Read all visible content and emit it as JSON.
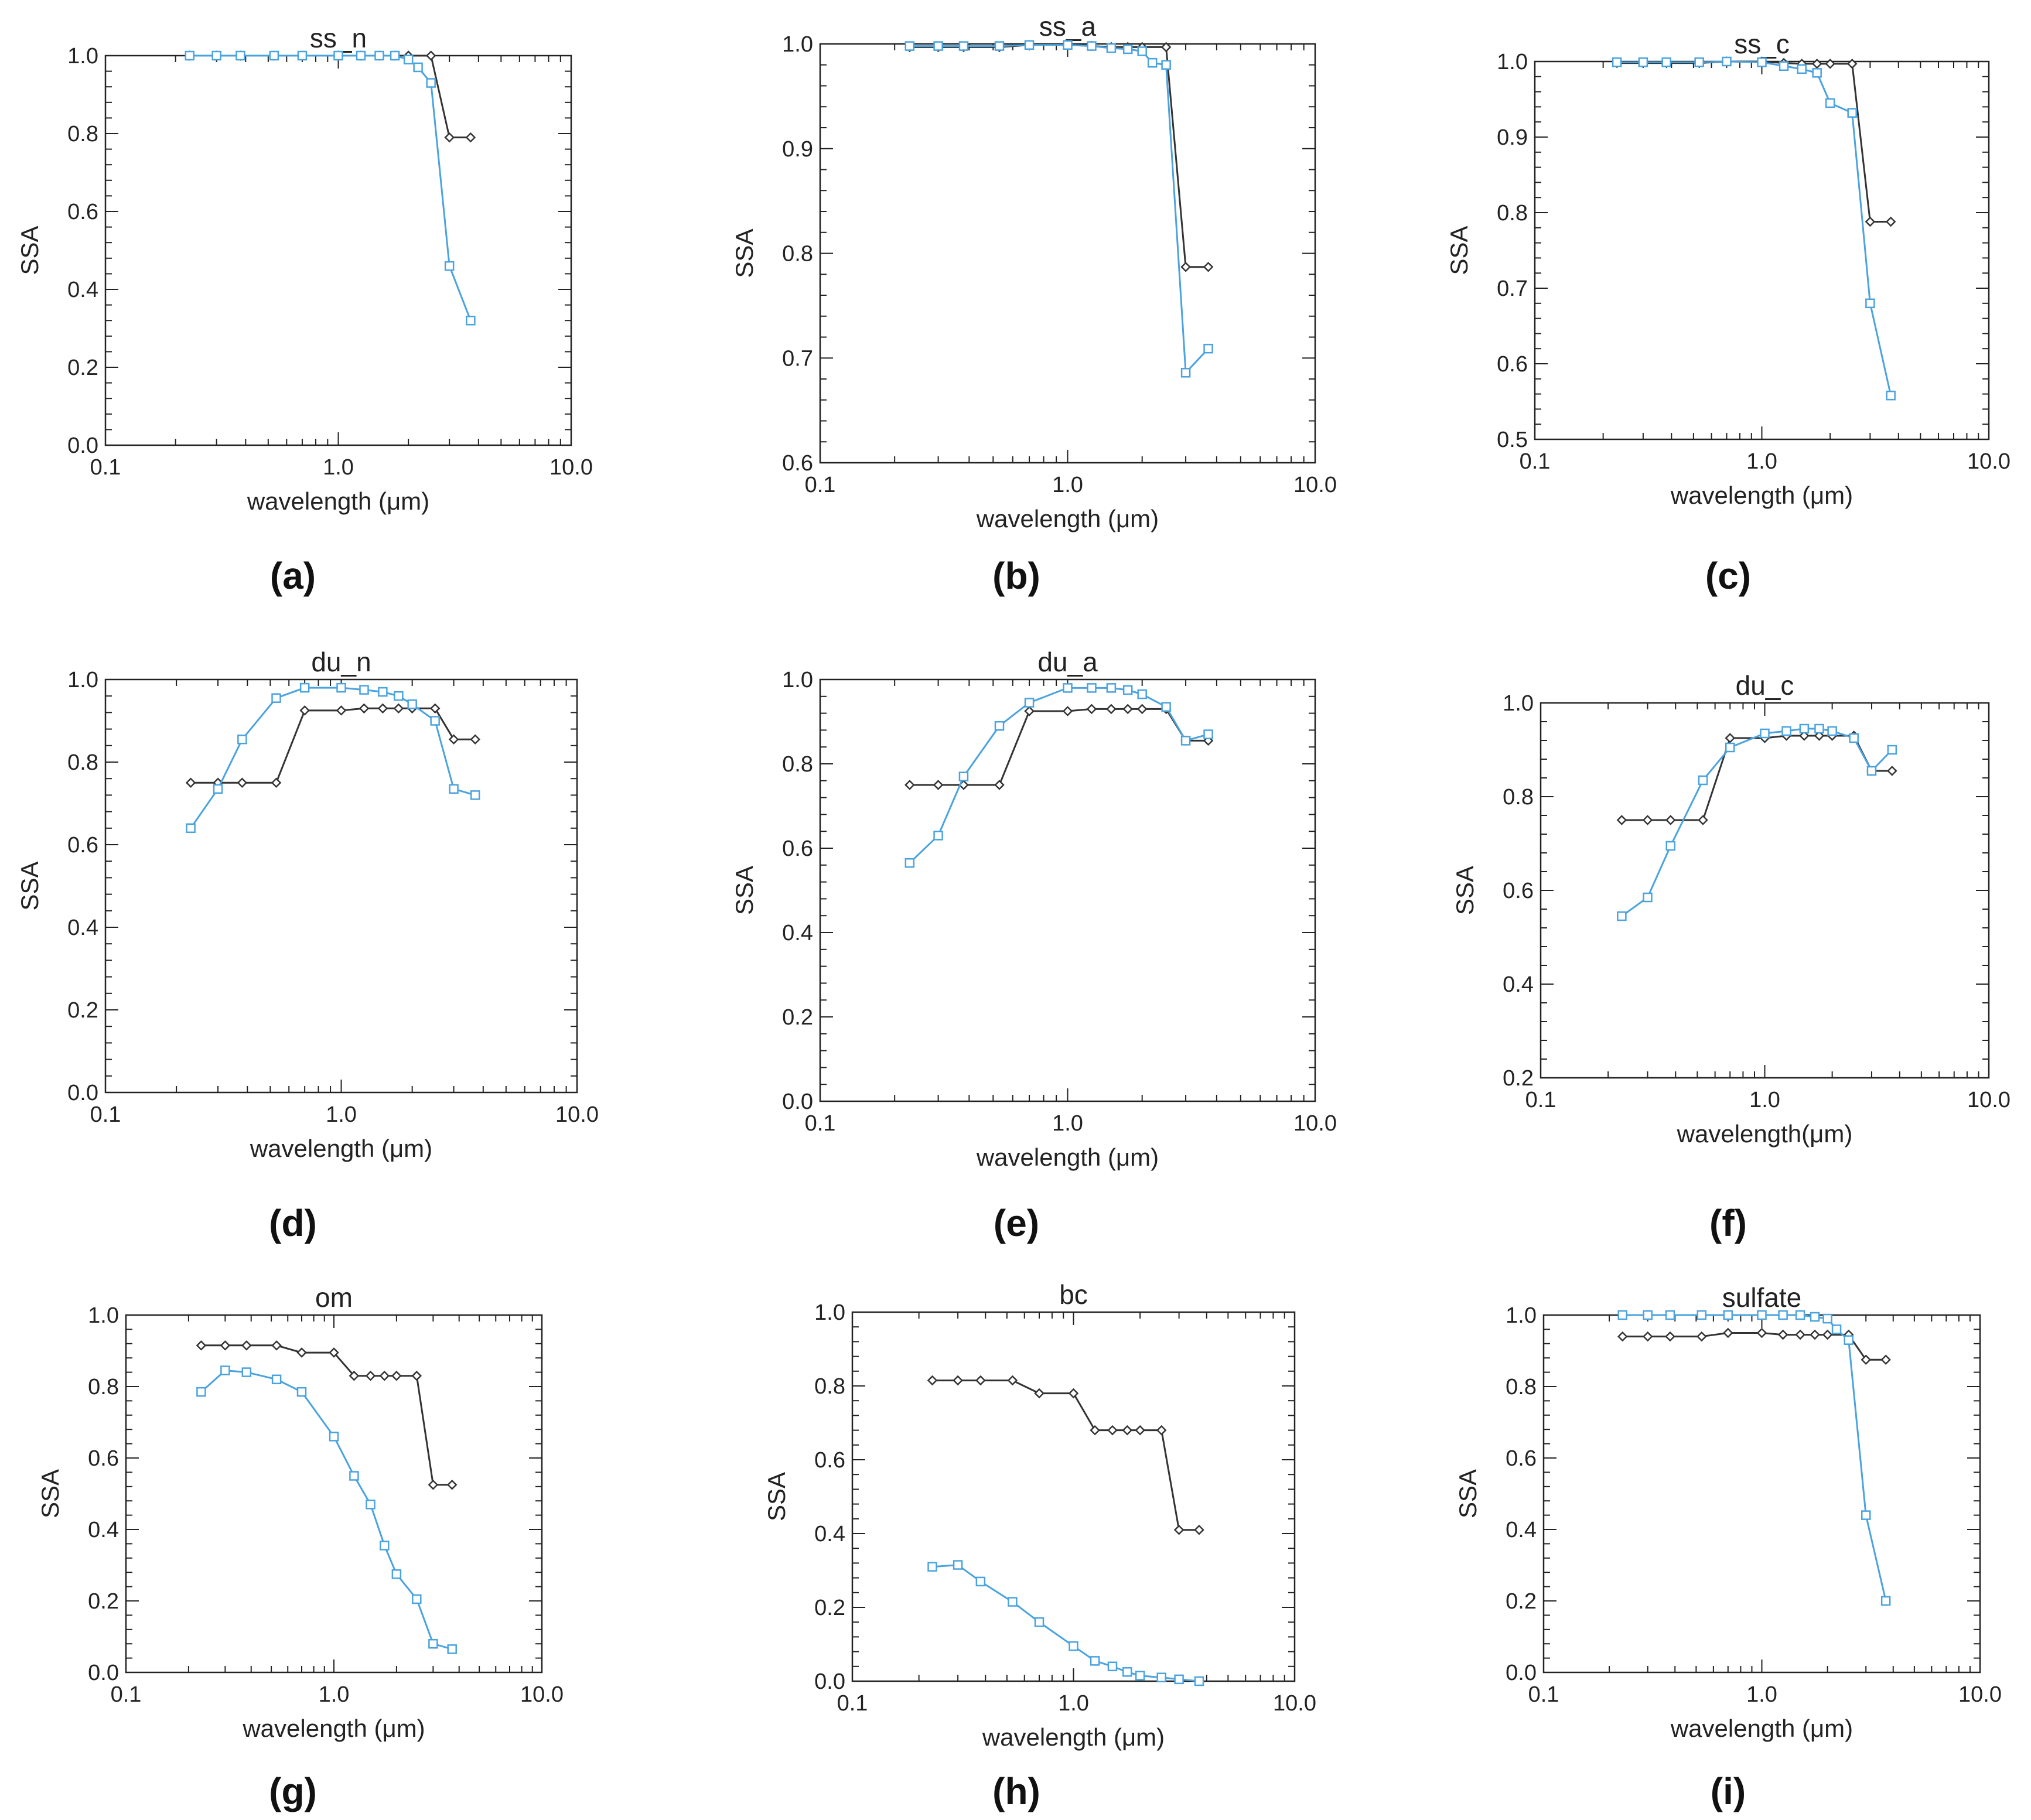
{
  "figure": {
    "black_color": "#333333",
    "blue_color": "#4aa3df",
    "x_ticks": [
      0.1,
      1.0,
      10.0
    ],
    "x_tick_labels": [
      "0.1",
      "1.0",
      "10.0"
    ]
  },
  "chart_data": [
    {
      "type": "line",
      "id": "a",
      "panel_label": "(a)",
      "title": "ss_n",
      "xlabel": "wavelength (μm)",
      "ylabel": "SSA",
      "xscale": "log",
      "xlim": [
        0.1,
        10.0
      ],
      "ylim": [
        0.0,
        1.0
      ],
      "yticks": [
        0.0,
        0.2,
        0.4,
        0.6,
        0.8,
        1.0
      ],
      "ytick_labels": [
        "0.0",
        "0.2",
        "0.4",
        "0.6",
        "0.8",
        "1.0"
      ],
      "series": [
        {
          "name": "black",
          "marker": "diamond",
          "x": [
            0.23,
            0.3,
            0.38,
            0.53,
            0.7,
            1.0,
            1.25,
            1.5,
            1.75,
            2.0,
            2.5,
            3.0,
            3.7
          ],
          "y": [
            1.0,
            1.0,
            1.0,
            1.0,
            1.0,
            1.0,
            1.0,
            1.0,
            1.0,
            1.0,
            1.0,
            0.79,
            0.79
          ]
        },
        {
          "name": "blue",
          "marker": "square",
          "x": [
            0.23,
            0.3,
            0.38,
            0.53,
            0.7,
            1.0,
            1.25,
            1.5,
            1.75,
            2.0,
            2.2,
            2.5,
            3.0,
            3.7
          ],
          "y": [
            1.0,
            1.0,
            1.0,
            1.0,
            1.0,
            1.0,
            1.0,
            1.0,
            1.0,
            0.99,
            0.97,
            0.93,
            0.46,
            0.32
          ]
        }
      ]
    },
    {
      "type": "line",
      "id": "b",
      "panel_label": "(b)",
      "title": "ss_a",
      "xlabel": "wavelength (μm)",
      "ylabel": "SSA",
      "xscale": "log",
      "xlim": [
        0.1,
        10.0
      ],
      "ylim": [
        0.6,
        1.0
      ],
      "yticks": [
        0.6,
        0.7,
        0.8,
        0.9,
        1.0
      ],
      "ytick_labels": [
        "0.6",
        "0.7",
        "0.8",
        "0.9",
        "1.0"
      ],
      "series": [
        {
          "name": "black",
          "marker": "diamond",
          "x": [
            0.23,
            0.3,
            0.38,
            0.53,
            0.7,
            1.0,
            1.25,
            1.5,
            1.75,
            2.0,
            2.5,
            3.0,
            3.7
          ],
          "y": [
            0.997,
            0.997,
            0.997,
            0.997,
            0.999,
            1.0,
            0.998,
            0.997,
            0.997,
            0.997,
            0.997,
            0.787,
            0.787
          ]
        },
        {
          "name": "blue",
          "marker": "square",
          "x": [
            0.23,
            0.3,
            0.38,
            0.53,
            0.7,
            1.0,
            1.25,
            1.5,
            1.75,
            2.0,
            2.2,
            2.5,
            3.0,
            3.7
          ],
          "y": [
            0.998,
            0.998,
            0.998,
            0.998,
            0.999,
            0.999,
            0.998,
            0.996,
            0.995,
            0.993,
            0.982,
            0.98,
            0.686,
            0.709
          ]
        }
      ]
    },
    {
      "type": "line",
      "id": "c",
      "panel_label": "(c)",
      "title": "ss_c",
      "xlabel": "wavelength (μm)",
      "ylabel": "SSA",
      "xscale": "log",
      "xlim": [
        0.1,
        10.0
      ],
      "ylim": [
        0.5,
        1.0
      ],
      "yticks": [
        0.5,
        0.6,
        0.7,
        0.8,
        0.9,
        1.0
      ],
      "ytick_labels": [
        "0.5",
        "0.6",
        "0.7",
        "0.8",
        "0.9",
        "1.0"
      ],
      "series": [
        {
          "name": "black",
          "marker": "diamond",
          "x": [
            0.23,
            0.3,
            0.38,
            0.53,
            0.7,
            1.0,
            1.25,
            1.5,
            1.75,
            2.0,
            2.5,
            3.0,
            3.7
          ],
          "y": [
            0.998,
            0.998,
            0.998,
            0.998,
            1.0,
            1.0,
            0.998,
            0.997,
            0.997,
            0.997,
            0.997,
            0.788,
            0.788
          ]
        },
        {
          "name": "blue",
          "marker": "square",
          "x": [
            0.23,
            0.3,
            0.38,
            0.53,
            0.7,
            1.0,
            1.25,
            1.5,
            1.75,
            2.0,
            2.5,
            3.0,
            3.7
          ],
          "y": [
            0.999,
            0.999,
            0.999,
            0.999,
            1.0,
            0.999,
            0.994,
            0.99,
            0.985,
            0.945,
            0.932,
            0.68,
            0.558
          ]
        }
      ]
    },
    {
      "type": "line",
      "id": "d",
      "panel_label": "(d)",
      "title": "du_n",
      "xlabel": "wavelength (μm)",
      "ylabel": "SSA",
      "xscale": "log",
      "xlim": [
        0.1,
        10.0
      ],
      "ylim": [
        0.0,
        1.0
      ],
      "yticks": [
        0.0,
        0.2,
        0.4,
        0.6,
        0.8,
        1.0
      ],
      "ytick_labels": [
        "0.0",
        "0.2",
        "0.4",
        "0.6",
        "0.8",
        "1.0"
      ],
      "series": [
        {
          "name": "black",
          "marker": "diamond",
          "x": [
            0.23,
            0.3,
            0.38,
            0.53,
            0.7,
            1.0,
            1.25,
            1.5,
            1.75,
            2.0,
            2.5,
            3.0,
            3.7
          ],
          "y": [
            0.75,
            0.75,
            0.75,
            0.75,
            0.925,
            0.925,
            0.93,
            0.93,
            0.93,
            0.93,
            0.93,
            0.855,
            0.855
          ]
        },
        {
          "name": "blue",
          "marker": "square",
          "x": [
            0.23,
            0.3,
            0.38,
            0.53,
            0.7,
            1.0,
            1.25,
            1.5,
            1.75,
            2.0,
            2.5,
            3.0,
            3.7
          ],
          "y": [
            0.64,
            0.735,
            0.855,
            0.955,
            0.98,
            0.98,
            0.975,
            0.97,
            0.96,
            0.94,
            0.9,
            0.735,
            0.72
          ]
        }
      ]
    },
    {
      "type": "line",
      "id": "e",
      "panel_label": "(e)",
      "title": "du_a",
      "xlabel": "wavelength (μm)",
      "ylabel": "SSA",
      "xscale": "log",
      "xlim": [
        0.1,
        10.0
      ],
      "ylim": [
        0.0,
        1.0
      ],
      "yticks": [
        0.0,
        0.2,
        0.4,
        0.6,
        0.8,
        1.0
      ],
      "ytick_labels": [
        "0.0",
        "0.2",
        "0.4",
        "0.6",
        "0.8",
        "1.0"
      ],
      "series": [
        {
          "name": "black",
          "marker": "diamond",
          "x": [
            0.23,
            0.3,
            0.38,
            0.53,
            0.7,
            1.0,
            1.25,
            1.5,
            1.75,
            2.0,
            2.5,
            3.0,
            3.7
          ],
          "y": [
            0.75,
            0.75,
            0.75,
            0.75,
            0.925,
            0.925,
            0.93,
            0.93,
            0.93,
            0.93,
            0.93,
            0.855,
            0.855
          ]
        },
        {
          "name": "blue",
          "marker": "square",
          "x": [
            0.23,
            0.3,
            0.38,
            0.53,
            0.7,
            1.0,
            1.25,
            1.5,
            1.75,
            2.0,
            2.5,
            3.0,
            3.7
          ],
          "y": [
            0.565,
            0.63,
            0.77,
            0.89,
            0.945,
            0.98,
            0.98,
            0.98,
            0.975,
            0.965,
            0.935,
            0.855,
            0.87
          ]
        }
      ]
    },
    {
      "type": "line",
      "id": "f",
      "panel_label": "(f)",
      "title": "du_c",
      "xlabel": "wavelength(μm)",
      "ylabel": "SSA",
      "xscale": "log",
      "xlim": [
        0.1,
        10.0
      ],
      "ylim": [
        0.2,
        1.0
      ],
      "yticks": [
        0.2,
        0.4,
        0.6,
        0.8,
        1.0
      ],
      "ytick_labels": [
        "0.2",
        "0.4",
        "0.6",
        "0.8",
        "1.0"
      ],
      "series": [
        {
          "name": "black",
          "marker": "diamond",
          "x": [
            0.23,
            0.3,
            0.38,
            0.53,
            0.7,
            1.0,
            1.25,
            1.5,
            1.75,
            2.0,
            2.5,
            3.0,
            3.7
          ],
          "y": [
            0.75,
            0.75,
            0.75,
            0.75,
            0.925,
            0.925,
            0.93,
            0.93,
            0.93,
            0.93,
            0.93,
            0.855,
            0.855
          ]
        },
        {
          "name": "blue",
          "marker": "square",
          "x": [
            0.23,
            0.3,
            0.38,
            0.53,
            0.7,
            1.0,
            1.25,
            1.5,
            1.75,
            2.0,
            2.5,
            3.0,
            3.7
          ],
          "y": [
            0.545,
            0.585,
            0.695,
            0.835,
            0.905,
            0.935,
            0.94,
            0.945,
            0.945,
            0.94,
            0.925,
            0.855,
            0.9
          ]
        }
      ]
    },
    {
      "type": "line",
      "id": "g",
      "panel_label": "(g)",
      "title": "om",
      "xlabel": "wavelength (μm)",
      "ylabel": "SSA",
      "xscale": "log",
      "xlim": [
        0.1,
        10.0
      ],
      "ylim": [
        0.0,
        1.0
      ],
      "yticks": [
        0.0,
        0.2,
        0.4,
        0.6,
        0.8,
        1.0
      ],
      "ytick_labels": [
        "0.0",
        "0.2",
        "0.4",
        "0.6",
        "0.8",
        "1.0"
      ],
      "series": [
        {
          "name": "black",
          "marker": "diamond",
          "x": [
            0.23,
            0.3,
            0.38,
            0.53,
            0.7,
            1.0,
            1.25,
            1.5,
            1.75,
            2.0,
            2.5,
            3.0,
            3.7
          ],
          "y": [
            0.915,
            0.915,
            0.915,
            0.915,
            0.895,
            0.895,
            0.83,
            0.83,
            0.83,
            0.83,
            0.83,
            0.525,
            0.525
          ]
        },
        {
          "name": "blue",
          "marker": "square",
          "x": [
            0.23,
            0.3,
            0.38,
            0.53,
            0.7,
            1.0,
            1.25,
            1.5,
            1.75,
            2.0,
            2.5,
            3.0,
            3.7
          ],
          "y": [
            0.785,
            0.845,
            0.84,
            0.82,
            0.785,
            0.66,
            0.55,
            0.47,
            0.355,
            0.275,
            0.205,
            0.08,
            0.065
          ]
        }
      ]
    },
    {
      "type": "line",
      "id": "h",
      "panel_label": "(h)",
      "title": "bc",
      "xlabel": "wavelength (μm)",
      "ylabel": "SSA",
      "xscale": "log",
      "xlim": [
        0.1,
        10.0
      ],
      "ylim": [
        0.0,
        1.0
      ],
      "yticks": [
        0.0,
        0.2,
        0.4,
        0.6,
        0.8,
        1.0
      ],
      "ytick_labels": [
        "0.0",
        "0.2",
        "0.4",
        "0.6",
        "0.8",
        "1.0"
      ],
      "series": [
        {
          "name": "black",
          "marker": "diamond",
          "x": [
            0.23,
            0.3,
            0.38,
            0.53,
            0.7,
            1.0,
            1.25,
            1.5,
            1.75,
            2.0,
            2.5,
            3.0,
            3.7
          ],
          "y": [
            0.815,
            0.815,
            0.815,
            0.815,
            0.78,
            0.78,
            0.68,
            0.68,
            0.68,
            0.68,
            0.68,
            0.41,
            0.41
          ]
        },
        {
          "name": "blue",
          "marker": "square",
          "x": [
            0.23,
            0.3,
            0.38,
            0.53,
            0.7,
            1.0,
            1.25,
            1.5,
            1.75,
            2.0,
            2.5,
            3.0,
            3.7
          ],
          "y": [
            0.31,
            0.315,
            0.27,
            0.215,
            0.16,
            0.095,
            0.055,
            0.04,
            0.025,
            0.015,
            0.01,
            0.005,
            0.0
          ]
        }
      ]
    },
    {
      "type": "line",
      "id": "i",
      "panel_label": "(i)",
      "title": "sulfate",
      "xlabel": "wavelength (μm)",
      "ylabel": "SSA",
      "xscale": "log",
      "xlim": [
        0.1,
        10.0
      ],
      "ylim": [
        0.0,
        1.0
      ],
      "yticks": [
        0.0,
        0.2,
        0.4,
        0.6,
        0.8,
        1.0
      ],
      "ytick_labels": [
        "0.0",
        "0.2",
        "0.4",
        "0.6",
        "0.8",
        "1.0"
      ],
      "series": [
        {
          "name": "black",
          "marker": "diamond",
          "x": [
            0.23,
            0.3,
            0.38,
            0.53,
            0.7,
            1.0,
            1.25,
            1.5,
            1.75,
            2.0,
            2.5,
            3.0,
            3.7
          ],
          "y": [
            0.94,
            0.94,
            0.94,
            0.94,
            0.95,
            0.95,
            0.945,
            0.945,
            0.945,
            0.945,
            0.945,
            0.875,
            0.875
          ]
        },
        {
          "name": "blue",
          "marker": "square",
          "x": [
            0.23,
            0.3,
            0.38,
            0.53,
            0.7,
            1.0,
            1.25,
            1.5,
            1.75,
            2.0,
            2.2,
            2.5,
            3.0,
            3.7
          ],
          "y": [
            1.0,
            1.0,
            1.0,
            1.0,
            1.0,
            1.0,
            1.0,
            1.0,
            0.995,
            0.99,
            0.96,
            0.93,
            0.44,
            0.2
          ]
        }
      ]
    }
  ]
}
